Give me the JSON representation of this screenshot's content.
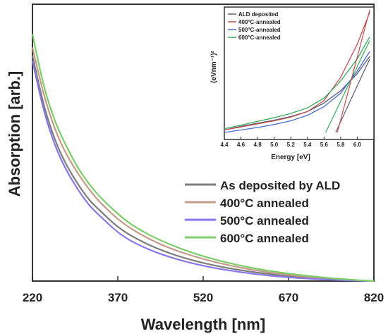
{
  "chart_data": [
    {
      "type": "line",
      "xlabel": "Wavelength [nm]",
      "ylabel": "Absorption [arb.]",
      "xlim": [
        220,
        820
      ],
      "ylim": [
        0,
        1
      ],
      "x_ticks": [
        220,
        370,
        520,
        670,
        820
      ],
      "y_tick_labels": false,
      "legend_position": "right-middle",
      "series": [
        {
          "name": "As deposited by ALD",
          "color": "#7d7d7d",
          "x": [
            220,
            240,
            260,
            280,
            300,
            320,
            340,
            370,
            400,
            450,
            520,
            600,
            670,
            750,
            820
          ],
          "y": [
            0.84,
            0.65,
            0.52,
            0.43,
            0.36,
            0.3,
            0.26,
            0.2,
            0.16,
            0.11,
            0.065,
            0.035,
            0.018,
            0.006,
            0.0
          ]
        },
        {
          "name": "400°C annealed",
          "color": "#c49a88",
          "x": [
            220,
            240,
            260,
            280,
            300,
            320,
            340,
            370,
            400,
            450,
            520,
            600,
            670,
            750,
            820
          ],
          "y": [
            0.87,
            0.69,
            0.56,
            0.47,
            0.4,
            0.34,
            0.29,
            0.23,
            0.185,
            0.13,
            0.08,
            0.043,
            0.022,
            0.007,
            0.0
          ]
        },
        {
          "name": "500°C annealed",
          "color": "#8877e8",
          "x": [
            220,
            240,
            260,
            280,
            300,
            320,
            340,
            370,
            400,
            450,
            520,
            600,
            670,
            750,
            820
          ],
          "y": [
            0.82,
            0.63,
            0.5,
            0.41,
            0.34,
            0.28,
            0.24,
            0.18,
            0.14,
            0.095,
            0.055,
            0.028,
            0.013,
            0.004,
            0.0
          ]
        },
        {
          "name": "600°C annealed",
          "color": "#7dcd6a",
          "x": [
            220,
            240,
            260,
            280,
            300,
            320,
            340,
            370,
            400,
            450,
            520,
            600,
            670,
            750,
            820
          ],
          "y": [
            0.92,
            0.72,
            0.59,
            0.5,
            0.42,
            0.36,
            0.31,
            0.25,
            0.2,
            0.145,
            0.09,
            0.05,
            0.027,
            0.009,
            0.0
          ]
        }
      ]
    },
    {
      "type": "line",
      "xlabel": "Energy [eV]",
      "ylabel": "(eVnm⁻¹)²",
      "xlim": [
        4.4,
        6.2
      ],
      "ylim": [
        0,
        1
      ],
      "x_ticks": [
        4.4,
        4.6,
        4.8,
        5.0,
        5.2,
        5.4,
        5.6,
        5.8,
        6.0
      ],
      "x_tick_labels": [
        "4.4",
        "4.6",
        "4.8",
        "5.0",
        "5.2",
        "5.4",
        "5.6",
        "5.8",
        "6.0"
      ],
      "legend_position": "top-left",
      "series": [
        {
          "name": "ALD deposited",
          "color": "#5a5a7a",
          "x": [
            4.4,
            4.6,
            4.8,
            5.0,
            5.2,
            5.4,
            5.6,
            5.8,
            6.0,
            6.15
          ],
          "y": [
            0.02,
            0.05,
            0.075,
            0.1,
            0.13,
            0.17,
            0.24,
            0.34,
            0.48,
            0.62
          ]
        },
        {
          "name": "400°C-annealed",
          "color": "#c05050",
          "x": [
            4.4,
            4.6,
            4.8,
            5.0,
            5.2,
            5.4,
            5.6,
            5.8,
            6.0,
            6.15
          ],
          "y": [
            0.02,
            0.045,
            0.07,
            0.095,
            0.125,
            0.17,
            0.26,
            0.45,
            0.72,
            0.98
          ]
        },
        {
          "name": "500°C-annealed",
          "color": "#4a6ad0",
          "x": [
            4.4,
            4.6,
            4.8,
            5.0,
            5.2,
            5.4,
            5.6,
            5.8,
            6.0,
            6.15
          ],
          "y": [
            0.0,
            0.02,
            0.04,
            0.065,
            0.095,
            0.14,
            0.21,
            0.32,
            0.5,
            0.66
          ]
        },
        {
          "name": "600°C-annealed",
          "color": "#3aaa5a",
          "x": [
            4.4,
            4.6,
            4.8,
            5.0,
            5.2,
            5.4,
            5.6,
            5.8,
            6.0,
            6.15
          ],
          "y": [
            0.03,
            0.06,
            0.09,
            0.12,
            0.155,
            0.2,
            0.28,
            0.42,
            0.6,
            0.78
          ]
        }
      ],
      "fit_lines": [
        {
          "color": "#3aaa5a",
          "x": [
            5.62,
            6.15
          ],
          "y": [
            0.0,
            0.75
          ]
        },
        {
          "color": "#5a5a7a",
          "x": [
            5.74,
            6.15
          ],
          "y": [
            0.0,
            0.6
          ]
        },
        {
          "color": "#c05050",
          "x": [
            5.76,
            6.15
          ],
          "y": [
            0.0,
            1.0
          ]
        }
      ]
    }
  ]
}
